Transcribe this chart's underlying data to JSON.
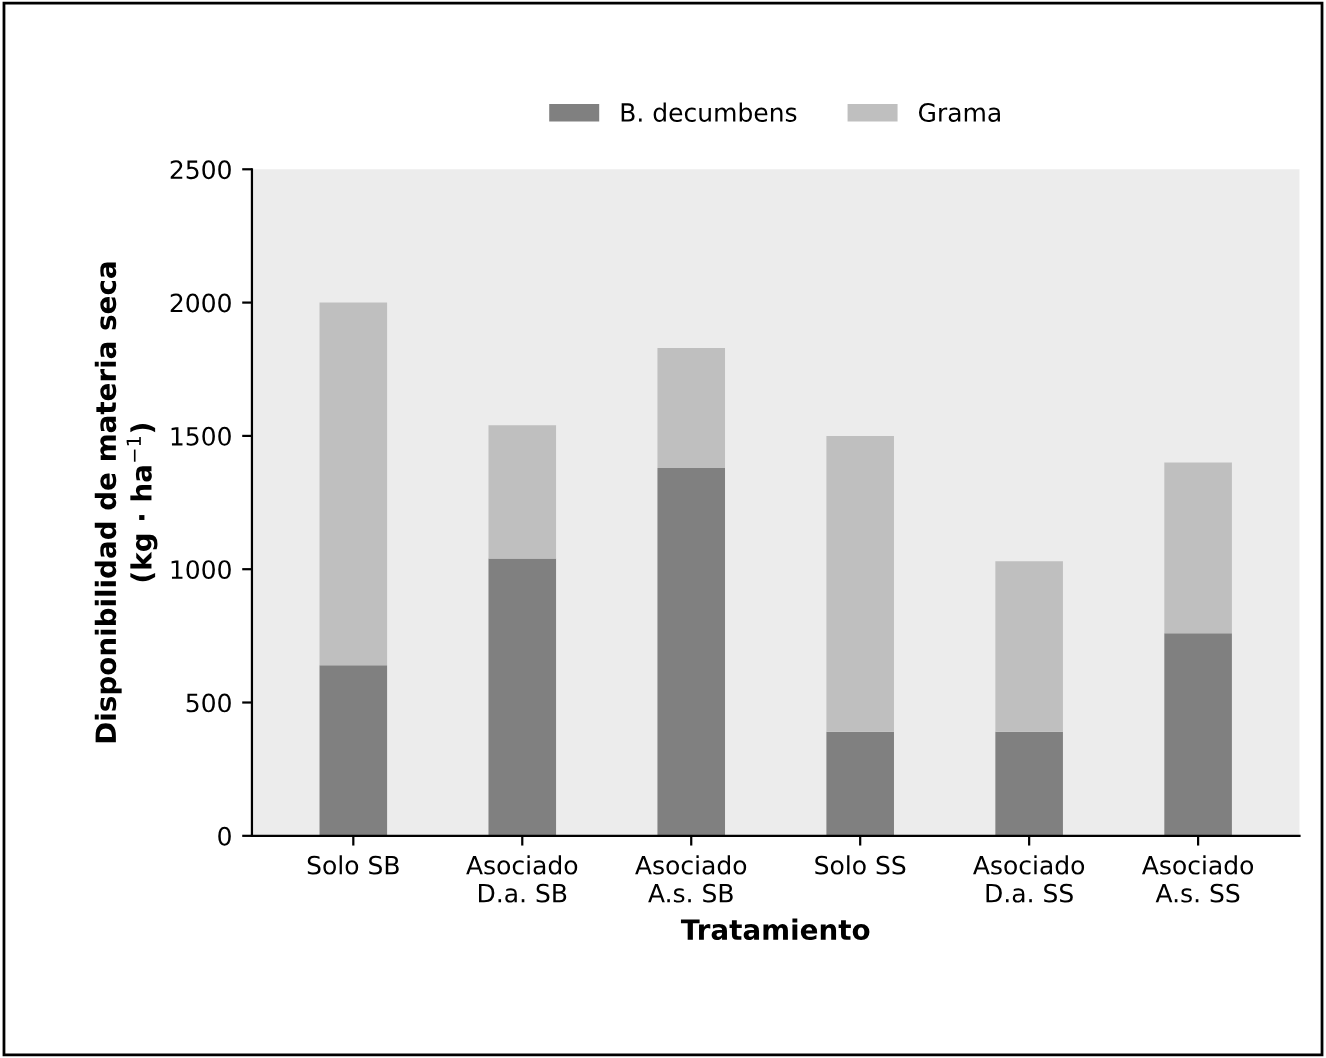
{
  "chart_data": {
    "type": "bar",
    "stacked": true,
    "xlabel": "Tratamiento",
    "ylabel": "Disponibilidad de materia seca\n(kg · ha$^{−1}$)",
    "categories": [
      "Solo SB",
      "Asociado\nD.a. SB",
      "Asociado\nA.s. SB",
      "Solo SS",
      "Asociado\nD.a. SS",
      "Asociado\nA.s. SS"
    ],
    "series": [
      {
        "name": "B. decumbens",
        "color": "#808080",
        "values": [
          640,
          1040,
          1380,
          390,
          390,
          760
        ]
      },
      {
        "name": "Grama",
        "color": "#bfbfbf",
        "values": [
          1360,
          500,
          450,
          1110,
          640,
          640
        ]
      }
    ],
    "ylim": [
      0,
      2500
    ],
    "yticks": [
      0,
      500,
      1000,
      1500,
      2000,
      2500
    ],
    "grid": false,
    "legend": "top"
  }
}
